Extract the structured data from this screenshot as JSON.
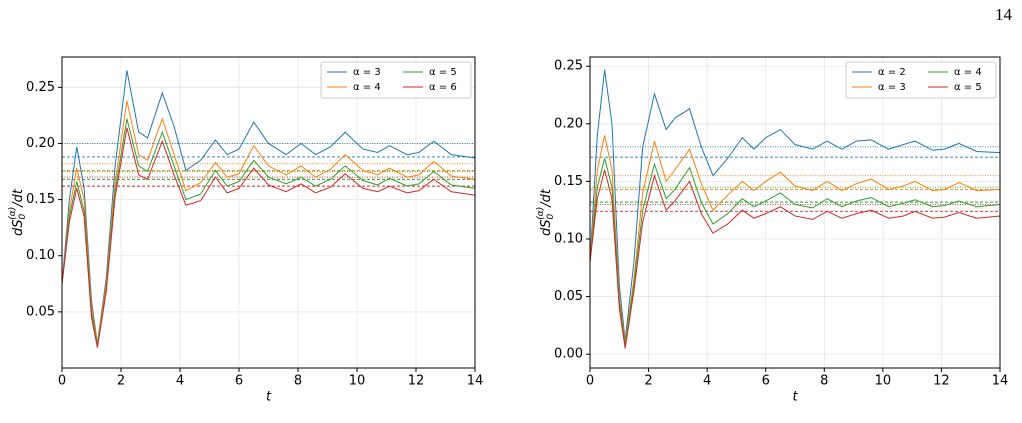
{
  "page_number": "14",
  "chart_data": [
    {
      "type": "line",
      "xlabel": "t",
      "ylabel": {
        "main": "dS",
        "sub": "0",
        "sup": "(α)",
        "tail": "/dt"
      },
      "xlim": [
        0,
        14
      ],
      "ylim": [
        0,
        0.277
      ],
      "xticks": [
        0,
        2,
        4,
        6,
        8,
        10,
        12,
        14
      ],
      "yticks": [
        0.05,
        {
          "value": 0.1,
          "label": "0.10"
        },
        0.15,
        {
          "value": 0.2,
          "label": "0.20"
        },
        0.25
      ],
      "grid": true,
      "legend": "upper right",
      "x": [
        0,
        0.25,
        0.5,
        0.75,
        1.0,
        1.2,
        1.5,
        1.8,
        2.2,
        2.6,
        2.9,
        3.4,
        3.8,
        4.2,
        4.7,
        5.2,
        5.6,
        6.0,
        6.5,
        7.0,
        7.6,
        8.1,
        8.6,
        9.1,
        9.6,
        10.2,
        10.7,
        11.1,
        11.7,
        12.1,
        12.6,
        13.2,
        14.0
      ],
      "series": [
        {
          "name": "α = 3",
          "color": "#1f77b4",
          "values": [
            0.075,
            0.15,
            0.197,
            0.16,
            0.06,
            0.022,
            0.08,
            0.18,
            0.265,
            0.21,
            0.205,
            0.245,
            0.215,
            0.176,
            0.185,
            0.203,
            0.19,
            0.195,
            0.219,
            0.2,
            0.19,
            0.2,
            0.19,
            0.197,
            0.21,
            0.195,
            0.192,
            0.198,
            0.19,
            0.192,
            0.202,
            0.19,
            0.187
          ]
        },
        {
          "name": "α = 4",
          "color": "#ff7f0e",
          "values": [
            0.075,
            0.14,
            0.178,
            0.15,
            0.055,
            0.022,
            0.075,
            0.165,
            0.238,
            0.19,
            0.185,
            0.222,
            0.19,
            0.158,
            0.165,
            0.183,
            0.17,
            0.173,
            0.198,
            0.18,
            0.172,
            0.18,
            0.17,
            0.177,
            0.19,
            0.176,
            0.172,
            0.178,
            0.17,
            0.172,
            0.184,
            0.171,
            0.168
          ]
        },
        {
          "name": "α = 5",
          "color": "#2ca02c",
          "values": [
            0.075,
            0.135,
            0.166,
            0.14,
            0.05,
            0.02,
            0.07,
            0.158,
            0.222,
            0.18,
            0.175,
            0.21,
            0.18,
            0.15,
            0.155,
            0.176,
            0.162,
            0.166,
            0.185,
            0.17,
            0.164,
            0.17,
            0.162,
            0.168,
            0.18,
            0.167,
            0.163,
            0.169,
            0.162,
            0.164,
            0.175,
            0.163,
            0.16
          ]
        },
        {
          "name": "α = 6",
          "color": "#d62728",
          "values": [
            0.075,
            0.13,
            0.16,
            0.135,
            0.045,
            0.018,
            0.068,
            0.152,
            0.214,
            0.172,
            0.168,
            0.202,
            0.172,
            0.145,
            0.149,
            0.17,
            0.156,
            0.16,
            0.178,
            0.163,
            0.157,
            0.164,
            0.156,
            0.161,
            0.173,
            0.16,
            0.157,
            0.162,
            0.156,
            0.158,
            0.168,
            0.157,
            0.154
          ]
        }
      ],
      "reference_lines": [
        {
          "value": 0.2,
          "color": "#1f77b4",
          "style": "dotted"
        },
        {
          "value": 0.188,
          "color": "#1f77b4",
          "style": "dashed"
        },
        {
          "value": 0.182,
          "color": "#ff7f0e",
          "style": "dotted"
        },
        {
          "value": 0.176,
          "color": "#ff7f0e",
          "style": "dashed"
        },
        {
          "value": 0.175,
          "color": "#2ca02c",
          "style": "dotted"
        },
        {
          "value": 0.168,
          "color": "#2ca02c",
          "style": "dashed"
        },
        {
          "value": 0.17,
          "color": "#d62728",
          "style": "dotted"
        },
        {
          "value": 0.162,
          "color": "#d62728",
          "style": "dashed"
        }
      ]
    },
    {
      "type": "line",
      "xlabel": "t",
      "ylabel": {
        "main": "dS",
        "sub": "0",
        "sup": "(α)",
        "tail": "/dt"
      },
      "xlim": [
        0,
        14
      ],
      "ylim": [
        -0.012,
        0.258
      ],
      "xticks": [
        0,
        2,
        4,
        6,
        8,
        10,
        12,
        14
      ],
      "yticks": [
        {
          "value": 0,
          "label": "0.00"
        },
        0.05,
        {
          "value": 0.1,
          "label": "0.10"
        },
        0.15,
        {
          "value": 0.2,
          "label": "0.20"
        },
        0.25
      ],
      "grid": true,
      "legend": "upper right",
      "x": [
        0,
        0.25,
        0.5,
        0.75,
        1.0,
        1.2,
        1.5,
        1.8,
        2.2,
        2.6,
        2.9,
        3.4,
        3.8,
        4.2,
        4.7,
        5.2,
        5.6,
        6.0,
        6.5,
        7.0,
        7.6,
        8.1,
        8.6,
        9.1,
        9.6,
        10.2,
        10.7,
        11.1,
        11.7,
        12.1,
        12.6,
        13.2,
        14.0
      ],
      "series": [
        {
          "name": "α = 2",
          "color": "#1f77b4",
          "values": [
            0.08,
            0.19,
            0.247,
            0.2,
            0.06,
            0.012,
            0.08,
            0.18,
            0.226,
            0.195,
            0.205,
            0.213,
            0.18,
            0.155,
            0.17,
            0.188,
            0.178,
            0.188,
            0.195,
            0.182,
            0.178,
            0.185,
            0.178,
            0.185,
            0.186,
            0.178,
            0.182,
            0.185,
            0.177,
            0.178,
            0.183,
            0.176,
            0.175
          ]
        },
        {
          "name": "α = 3",
          "color": "#ff7f0e",
          "values": [
            0.08,
            0.16,
            0.19,
            0.16,
            0.05,
            0.01,
            0.065,
            0.14,
            0.185,
            0.15,
            0.16,
            0.178,
            0.148,
            0.125,
            0.138,
            0.15,
            0.142,
            0.15,
            0.158,
            0.146,
            0.142,
            0.15,
            0.142,
            0.148,
            0.152,
            0.143,
            0.146,
            0.15,
            0.142,
            0.143,
            0.149,
            0.142,
            0.143
          ]
        },
        {
          "name": "α = 4",
          "color": "#2ca02c",
          "values": [
            0.08,
            0.145,
            0.17,
            0.145,
            0.045,
            0.008,
            0.06,
            0.125,
            0.165,
            0.135,
            0.143,
            0.162,
            0.132,
            0.113,
            0.122,
            0.135,
            0.128,
            0.133,
            0.14,
            0.13,
            0.127,
            0.135,
            0.128,
            0.133,
            0.136,
            0.128,
            0.131,
            0.134,
            0.128,
            0.129,
            0.133,
            0.128,
            0.13
          ]
        },
        {
          "name": "α = 5",
          "color": "#d62728",
          "values": [
            0.08,
            0.135,
            0.16,
            0.135,
            0.04,
            0.005,
            0.055,
            0.115,
            0.155,
            0.125,
            0.133,
            0.15,
            0.122,
            0.105,
            0.113,
            0.125,
            0.118,
            0.122,
            0.128,
            0.12,
            0.117,
            0.124,
            0.118,
            0.122,
            0.125,
            0.118,
            0.12,
            0.124,
            0.118,
            0.119,
            0.123,
            0.118,
            0.12
          ]
        }
      ],
      "reference_lines": [
        {
          "value": 0.18,
          "color": "#1f77b4",
          "style": "dotted"
        },
        {
          "value": 0.171,
          "color": "#1f77b4",
          "style": "dashed"
        },
        {
          "value": 0.155,
          "color": "#ff7f0e",
          "style": "dotted"
        },
        {
          "value": 0.143,
          "color": "#ff7f0e",
          "style": "dashed"
        },
        {
          "value": 0.145,
          "color": "#2ca02c",
          "style": "dotted"
        },
        {
          "value": 0.132,
          "color": "#2ca02c",
          "style": "dashed"
        },
        {
          "value": 0.13,
          "color": "#d62728",
          "style": "dotted"
        },
        {
          "value": 0.124,
          "color": "#d62728",
          "style": "dashed"
        }
      ]
    }
  ]
}
